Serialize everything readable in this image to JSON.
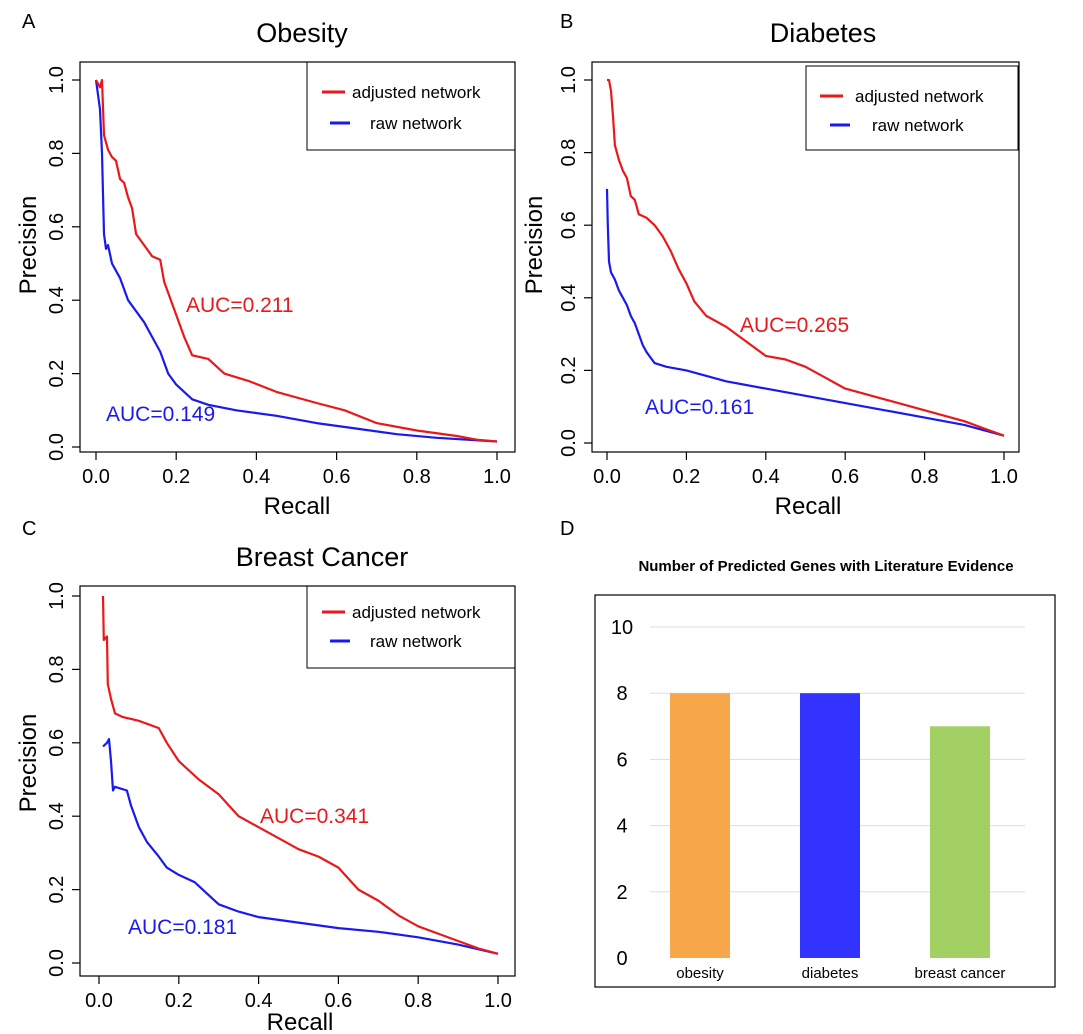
{
  "panel_letters": [
    "A",
    "B",
    "C",
    "D"
  ],
  "colors": {
    "adjusted": "#e8191b",
    "raw": "#1a1aee",
    "obesity_bar": "#f7a64a",
    "diabetes_bar": "#3333ff",
    "breast_cancer_bar": "#a2d063",
    "axis": "#000000",
    "grid": "#dddddd"
  },
  "chart_data": [
    {
      "type": "line",
      "title": "Obesity",
      "xlabel": "Recall",
      "ylabel": "Precision",
      "xlim": [
        0,
        1
      ],
      "ylim": [
        0,
        1
      ],
      "x_ticks": [
        "0.0",
        "0.2",
        "0.4",
        "0.6",
        "0.8",
        "1.0"
      ],
      "y_ticks": [
        "0.0",
        "0.2",
        "0.4",
        "0.6",
        "0.8",
        "1.0"
      ],
      "legend": {
        "position": "top-right",
        "entries": [
          "adjusted network",
          "raw network"
        ]
      },
      "annotations": [
        {
          "text": "AUC=0.211",
          "series": "adjusted network"
        },
        {
          "text": "AUC=0.149",
          "series": "raw network"
        }
      ],
      "series": [
        {
          "name": "adjusted network",
          "points": [
            [
              0.0,
              1.0
            ],
            [
              0.01,
              0.98
            ],
            [
              0.015,
              1.0
            ],
            [
              0.02,
              0.85
            ],
            [
              0.03,
              0.81
            ],
            [
              0.04,
              0.79
            ],
            [
              0.05,
              0.78
            ],
            [
              0.06,
              0.73
            ],
            [
              0.07,
              0.72
            ],
            [
              0.08,
              0.68
            ],
            [
              0.09,
              0.65
            ],
            [
              0.1,
              0.58
            ],
            [
              0.12,
              0.55
            ],
            [
              0.14,
              0.52
            ],
            [
              0.16,
              0.51
            ],
            [
              0.17,
              0.45
            ],
            [
              0.18,
              0.42
            ],
            [
              0.2,
              0.36
            ],
            [
              0.22,
              0.3
            ],
            [
              0.24,
              0.25
            ],
            [
              0.28,
              0.24
            ],
            [
              0.32,
              0.2
            ],
            [
              0.38,
              0.18
            ],
            [
              0.45,
              0.15
            ],
            [
              0.55,
              0.12
            ],
            [
              0.62,
              0.1
            ],
            [
              0.7,
              0.065
            ],
            [
              0.8,
              0.045
            ],
            [
              0.9,
              0.03
            ],
            [
              0.95,
              0.02
            ],
            [
              1.0,
              0.015
            ]
          ]
        },
        {
          "name": "raw network",
          "points": [
            [
              0.0,
              1.0
            ],
            [
              0.01,
              0.92
            ],
            [
              0.015,
              0.8
            ],
            [
              0.02,
              0.58
            ],
            [
              0.025,
              0.54
            ],
            [
              0.03,
              0.55
            ],
            [
              0.04,
              0.5
            ],
            [
              0.05,
              0.48
            ],
            [
              0.06,
              0.46
            ],
            [
              0.07,
              0.43
            ],
            [
              0.08,
              0.4
            ],
            [
              0.1,
              0.37
            ],
            [
              0.12,
              0.34
            ],
            [
              0.14,
              0.3
            ],
            [
              0.16,
              0.26
            ],
            [
              0.18,
              0.2
            ],
            [
              0.2,
              0.17
            ],
            [
              0.24,
              0.13
            ],
            [
              0.28,
              0.115
            ],
            [
              0.35,
              0.1
            ],
            [
              0.45,
              0.085
            ],
            [
              0.55,
              0.065
            ],
            [
              0.65,
              0.05
            ],
            [
              0.75,
              0.035
            ],
            [
              0.85,
              0.025
            ],
            [
              1.0,
              0.015
            ]
          ]
        }
      ]
    },
    {
      "type": "line",
      "title": "Diabetes",
      "xlabel": "Recall",
      "ylabel": "Precision",
      "xlim": [
        0,
        1
      ],
      "ylim": [
        0,
        1
      ],
      "x_ticks": [
        "0.0",
        "0.2",
        "0.4",
        "0.6",
        "0.8",
        "1.0"
      ],
      "y_ticks": [
        "0.0",
        "0.2",
        "0.4",
        "0.6",
        "0.8",
        "1.0"
      ],
      "legend": {
        "position": "top-right",
        "entries": [
          "adjusted network",
          "raw network"
        ]
      },
      "annotations": [
        {
          "text": "AUC=0.265",
          "series": "adjusted network"
        },
        {
          "text": "AUC=0.161",
          "series": "raw network"
        }
      ],
      "series": [
        {
          "name": "adjusted network",
          "points": [
            [
              0.0,
              1.0
            ],
            [
              0.005,
              1.0
            ],
            [
              0.01,
              0.97
            ],
            [
              0.015,
              0.9
            ],
            [
              0.02,
              0.82
            ],
            [
              0.03,
              0.78
            ],
            [
              0.04,
              0.75
            ],
            [
              0.05,
              0.73
            ],
            [
              0.06,
              0.68
            ],
            [
              0.07,
              0.67
            ],
            [
              0.08,
              0.63
            ],
            [
              0.1,
              0.62
            ],
            [
              0.12,
              0.6
            ],
            [
              0.14,
              0.57
            ],
            [
              0.16,
              0.53
            ],
            [
              0.18,
              0.48
            ],
            [
              0.2,
              0.44
            ],
            [
              0.22,
              0.39
            ],
            [
              0.25,
              0.35
            ],
            [
              0.3,
              0.32
            ],
            [
              0.35,
              0.28
            ],
            [
              0.4,
              0.24
            ],
            [
              0.45,
              0.23
            ],
            [
              0.5,
              0.21
            ],
            [
              0.55,
              0.18
            ],
            [
              0.6,
              0.15
            ],
            [
              0.7,
              0.12
            ],
            [
              0.8,
              0.09
            ],
            [
              0.9,
              0.06
            ],
            [
              0.95,
              0.04
            ],
            [
              1.0,
              0.02
            ]
          ]
        },
        {
          "name": "raw network",
          "points": [
            [
              0.0,
              0.7
            ],
            [
              0.002,
              0.6
            ],
            [
              0.005,
              0.5
            ],
            [
              0.01,
              0.47
            ],
            [
              0.02,
              0.45
            ],
            [
              0.03,
              0.42
            ],
            [
              0.04,
              0.4
            ],
            [
              0.05,
              0.38
            ],
            [
              0.06,
              0.35
            ],
            [
              0.07,
              0.33
            ],
            [
              0.08,
              0.3
            ],
            [
              0.09,
              0.27
            ],
            [
              0.1,
              0.25
            ],
            [
              0.12,
              0.22
            ],
            [
              0.15,
              0.21
            ],
            [
              0.2,
              0.2
            ],
            [
              0.3,
              0.17
            ],
            [
              0.4,
              0.15
            ],
            [
              0.5,
              0.13
            ],
            [
              0.6,
              0.11
            ],
            [
              0.7,
              0.09
            ],
            [
              0.8,
              0.07
            ],
            [
              0.9,
              0.05
            ],
            [
              1.0,
              0.02
            ]
          ]
        }
      ]
    },
    {
      "type": "line",
      "title": "Breast Cancer",
      "xlabel": "Recall",
      "ylabel": "Precision",
      "xlim": [
        0,
        1
      ],
      "ylim": [
        0,
        1
      ],
      "x_ticks": [
        "0.0",
        "0.2",
        "0.4",
        "0.6",
        "0.8",
        "1.0"
      ],
      "y_ticks": [
        "0.0",
        "0.2",
        "0.4",
        "0.6",
        "0.8",
        "1.0"
      ],
      "legend": {
        "position": "top-right",
        "entries": [
          "adjusted network",
          "raw network"
        ]
      },
      "annotations": [
        {
          "text": "AUC=0.341",
          "series": "adjusted network"
        },
        {
          "text": "AUC=0.181",
          "series": "raw network"
        }
      ],
      "series": [
        {
          "name": "adjusted network",
          "points": [
            [
              0.01,
              1.0
            ],
            [
              0.012,
              0.88
            ],
            [
              0.02,
              0.89
            ],
            [
              0.022,
              0.76
            ],
            [
              0.03,
              0.72
            ],
            [
              0.04,
              0.68
            ],
            [
              0.06,
              0.67
            ],
            [
              0.1,
              0.66
            ],
            [
              0.15,
              0.64
            ],
            [
              0.17,
              0.6
            ],
            [
              0.2,
              0.55
            ],
            [
              0.25,
              0.5
            ],
            [
              0.3,
              0.46
            ],
            [
              0.35,
              0.4
            ],
            [
              0.4,
              0.37
            ],
            [
              0.45,
              0.34
            ],
            [
              0.5,
              0.31
            ],
            [
              0.55,
              0.29
            ],
            [
              0.6,
              0.26
            ],
            [
              0.65,
              0.2
            ],
            [
              0.7,
              0.17
            ],
            [
              0.75,
              0.13
            ],
            [
              0.8,
              0.1
            ],
            [
              0.85,
              0.08
            ],
            [
              0.9,
              0.06
            ],
            [
              0.95,
              0.04
            ],
            [
              1.0,
              0.025
            ]
          ]
        },
        {
          "name": "raw network",
          "points": [
            [
              0.01,
              0.59
            ],
            [
              0.02,
              0.6
            ],
            [
              0.025,
              0.61
            ],
            [
              0.03,
              0.55
            ],
            [
              0.035,
              0.47
            ],
            [
              0.04,
              0.48
            ],
            [
              0.07,
              0.47
            ],
            [
              0.08,
              0.43
            ],
            [
              0.1,
              0.37
            ],
            [
              0.12,
              0.33
            ],
            [
              0.15,
              0.29
            ],
            [
              0.17,
              0.26
            ],
            [
              0.2,
              0.24
            ],
            [
              0.24,
              0.22
            ],
            [
              0.27,
              0.19
            ],
            [
              0.3,
              0.16
            ],
            [
              0.35,
              0.14
            ],
            [
              0.4,
              0.125
            ],
            [
              0.5,
              0.11
            ],
            [
              0.6,
              0.095
            ],
            [
              0.7,
              0.085
            ],
            [
              0.8,
              0.07
            ],
            [
              0.9,
              0.05
            ],
            [
              1.0,
              0.025
            ]
          ]
        }
      ]
    },
    {
      "type": "bar",
      "title": "Number of Predicted Genes with Literature Evidence",
      "categories": [
        "obesity",
        "diabetes",
        "breast cancer"
      ],
      "values": [
        8,
        8,
        7
      ],
      "colors": [
        "#f7a64a",
        "#3333ff",
        "#a2d063"
      ],
      "ylim": [
        0,
        10.5
      ],
      "y_ticks": [
        "0",
        "2",
        "4",
        "6",
        "8",
        "10"
      ],
      "grid": true
    }
  ]
}
